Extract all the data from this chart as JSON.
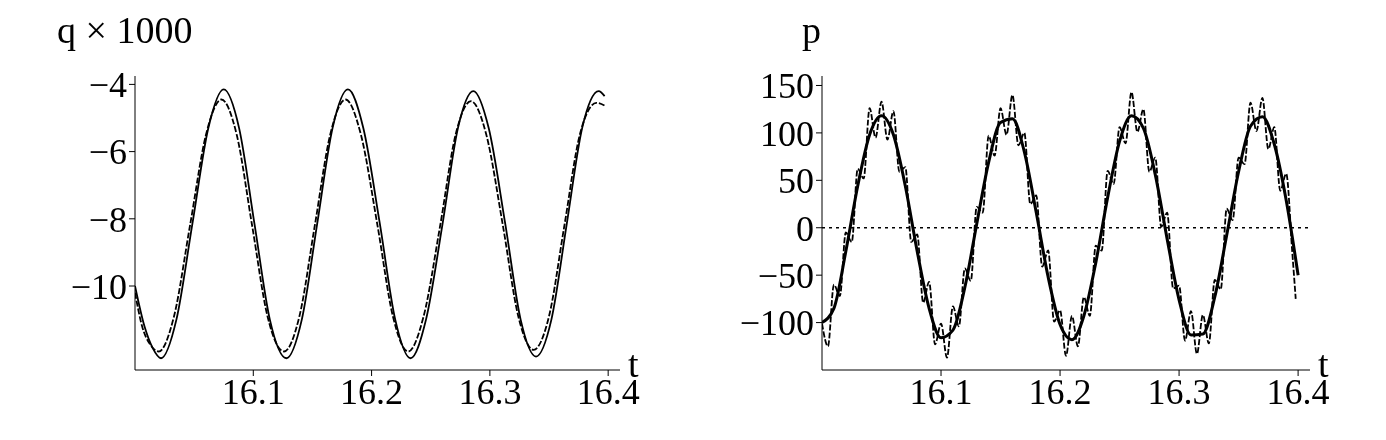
{
  "chart_data": [
    {
      "type": "line",
      "xlabel": "t",
      "ylabel": "q × 1000",
      "xlim": [
        16.0,
        16.41
      ],
      "ylim": [
        -12.5,
        -3.75
      ],
      "xticks": [
        16.1,
        16.2,
        16.3,
        16.4
      ],
      "yticks": [
        -4,
        -6,
        -8,
        -10
      ],
      "series": [
        {
          "color": "#000000",
          "line_style": "solid",
          "x": [
            16.0,
            16.008,
            16.015,
            16.022,
            16.035,
            16.0485,
            16.062,
            16.075,
            16.088,
            16.101,
            16.114,
            16.128,
            16.141,
            16.154,
            16.167,
            16.18,
            16.193,
            16.207,
            16.22,
            16.233,
            16.246,
            16.26,
            16.273,
            16.286,
            16.299,
            16.313,
            16.326,
            16.339,
            16.352,
            16.365,
            16.378,
            16.392,
            16.397
          ],
          "values": [
            -10.0,
            -11.2,
            -11.85,
            -12.15,
            -11.0,
            -8.15,
            -5.3,
            -4.15,
            -5.3,
            -8.15,
            -11.0,
            -12.15,
            -11.0,
            -8.15,
            -5.3,
            -4.15,
            -5.3,
            -8.15,
            -11.0,
            -12.15,
            -11.0,
            -8.15,
            -5.3,
            -4.2,
            -5.3,
            -8.15,
            -11.0,
            -12.1,
            -11.0,
            -8.15,
            -5.3,
            -4.2,
            -4.35
          ]
        },
        {
          "color": "#000000",
          "line_style": "dashed",
          "x": [
            16.0,
            16.006,
            16.013,
            16.02,
            16.033,
            16.0465,
            16.06,
            16.073,
            16.086,
            16.099,
            16.112,
            16.126,
            16.139,
            16.152,
            16.165,
            16.178,
            16.191,
            16.205,
            16.218,
            16.231,
            16.244,
            16.258,
            16.271,
            16.284,
            16.297,
            16.311,
            16.324,
            16.337,
            16.35,
            16.363,
            16.376,
            16.39,
            16.398
          ],
          "values": [
            -10.2,
            -11.2,
            -11.75,
            -11.95,
            -10.9,
            -8.2,
            -5.5,
            -4.45,
            -5.5,
            -8.2,
            -10.9,
            -11.95,
            -10.9,
            -8.2,
            -5.5,
            -4.45,
            -5.5,
            -8.2,
            -10.9,
            -11.95,
            -10.9,
            -8.2,
            -5.5,
            -4.5,
            -5.5,
            -8.2,
            -10.9,
            -11.9,
            -10.9,
            -8.2,
            -5.5,
            -4.55,
            -4.65
          ]
        }
      ]
    },
    {
      "type": "line",
      "xlabel": "t",
      "ylabel": "p",
      "xlim": [
        16.0,
        16.41
      ],
      "ylim": [
        -150,
        160
      ],
      "xticks": [
        16.1,
        16.2,
        16.3,
        16.4
      ],
      "yticks": [
        -100,
        -50,
        0,
        50,
        100,
        150
      ],
      "ref_lines": [
        {
          "axis": "y",
          "value": 0,
          "line_style": "dotted",
          "color": "#000000"
        }
      ],
      "series": [
        {
          "color": "#000000",
          "line_style": "dashed",
          "x": [
            16.0,
            16.005,
            16.01,
            16.015,
            16.02,
            16.025,
            16.03,
            16.035,
            16.04,
            16.045,
            16.05,
            16.055,
            16.06,
            16.065,
            16.07,
            16.075,
            16.08,
            16.085,
            16.09,
            16.095,
            16.1,
            16.105,
            16.11,
            16.115,
            16.12,
            16.125,
            16.13,
            16.135,
            16.14,
            16.145,
            16.15,
            16.155,
            16.16,
            16.165,
            16.17,
            16.175,
            16.18,
            16.185,
            16.19,
            16.195,
            16.2,
            16.205,
            16.21,
            16.215,
            16.22,
            16.225,
            16.23,
            16.235,
            16.24,
            16.245,
            16.25,
            16.255,
            16.26,
            16.265,
            16.27,
            16.275,
            16.28,
            16.285,
            16.29,
            16.295,
            16.3,
            16.305,
            16.31,
            16.315,
            16.32,
            16.325,
            16.33,
            16.335,
            16.34,
            16.345,
            16.35,
            16.355,
            16.36,
            16.365,
            16.37,
            16.375,
            16.38,
            16.385,
            16.39,
            16.395,
            16.398
          ],
          "values": [
            -101,
            -125,
            -60,
            -72,
            -5,
            -15,
            62,
            52,
            126,
            95,
            133,
            93,
            123,
            59,
            64,
            -15,
            -7,
            -79,
            -57,
            -123,
            -101,
            -137,
            -83,
            -104,
            -43,
            -56,
            22,
            16,
            97,
            76,
            126,
            98,
            140,
            87,
            100,
            25,
            34,
            -41,
            -24,
            -99,
            -87,
            -135,
            -93,
            -125,
            -73,
            -93,
            -19,
            -24,
            60,
            46,
            106,
            89,
            143,
            101,
            125,
            59,
            74,
            1,
            16,
            -64,
            -61,
            -119,
            -88,
            -133,
            -92,
            -122,
            -55,
            -65,
            20,
            8,
            74,
            67,
            132,
            102,
            137,
            83,
            106,
            39,
            57,
            -24,
            -75
          ]
        },
        {
          "color": "#000000",
          "line_style": "solid",
          "x": [
            16.0,
            16.01,
            16.02,
            16.03,
            16.04,
            16.05,
            16.06,
            16.07,
            16.08,
            16.09,
            16.1,
            16.11,
            16.12,
            16.13,
            16.14,
            16.15,
            16.16,
            16.17,
            16.18,
            16.19,
            16.2,
            16.21,
            16.22,
            16.23,
            16.24,
            16.25,
            16.26,
            16.27,
            16.28,
            16.29,
            16.3,
            16.31,
            16.32,
            16.33,
            16.34,
            16.35,
            16.36,
            16.37,
            16.38,
            16.39,
            16.4
          ],
          "values": [
            -100,
            -85,
            -25,
            44,
            98,
            118,
            98,
            44,
            -25,
            -85,
            -116,
            -108,
            -63,
            4,
            69,
            111,
            115,
            80,
            16,
            -52,
            -102,
            -118,
            -93,
            -37,
            32,
            91,
            118,
            105,
            56,
            -12,
            -76,
            -113,
            -112,
            -73,
            -8,
            59,
            107,
            117,
            88,
            29,
            -50
          ]
        }
      ]
    }
  ]
}
